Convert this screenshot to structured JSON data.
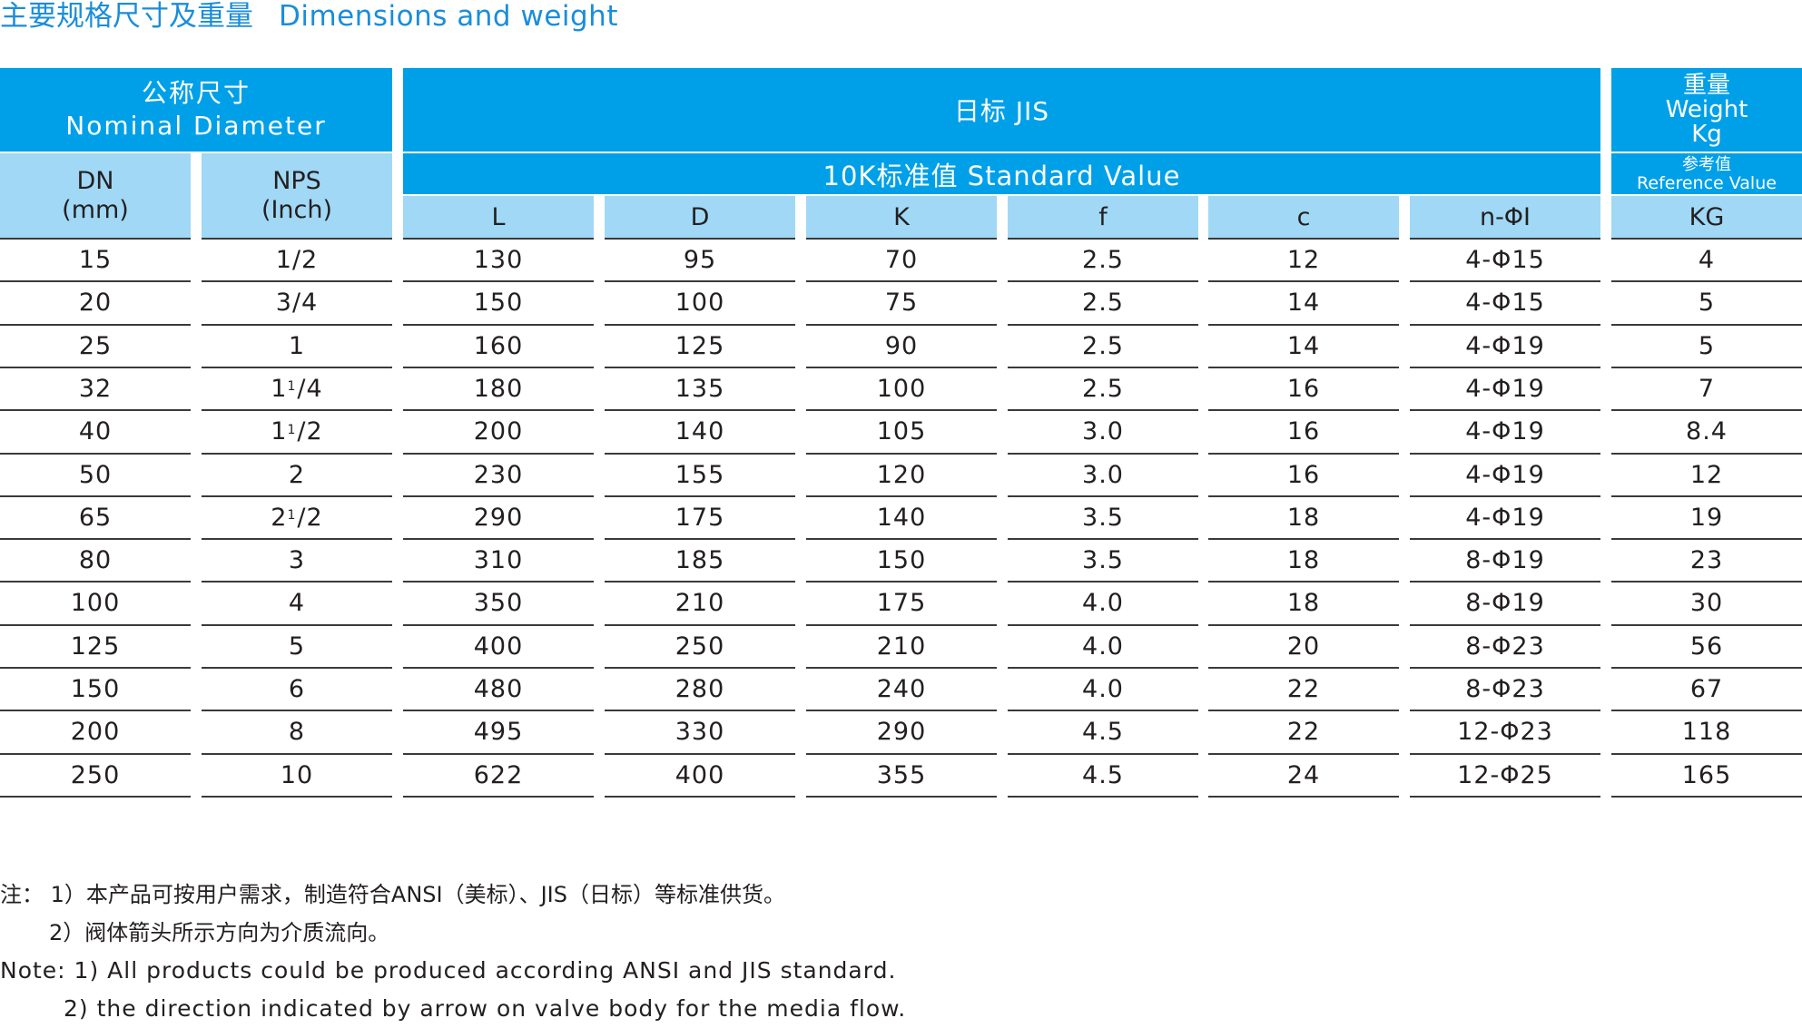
{
  "title": {
    "cn": "主要规格尺寸及重量",
    "en": "Dimensions and weight"
  },
  "header": {
    "nominal_cn": "公称尺寸",
    "nominal_en": "Nominal Diameter",
    "jis": "日标 JIS",
    "std": "10K标准值 Standard Value",
    "weight_cn": "重量",
    "weight_en": "Weight",
    "weight_unit": "Kg",
    "ref_cn": "参考值",
    "ref_en": "Reference Value",
    "dn": "DN",
    "dn_unit": "(mm)",
    "nps": "NPS",
    "nps_unit": "(Inch)",
    "cols": [
      "L",
      "D",
      "K",
      "f",
      "c",
      "n-ΦI",
      "KG"
    ]
  },
  "rows": [
    [
      "15",
      "1/2",
      "130",
      "95",
      "70",
      "2.5",
      "12",
      "4-Φ15",
      "4"
    ],
    [
      "20",
      "3/4",
      "150",
      "100",
      "75",
      "2.5",
      "14",
      "4-Φ15",
      "5"
    ],
    [
      "25",
      "1",
      "160",
      "125",
      "90",
      "2.5",
      "14",
      "4-Φ19",
      "5"
    ],
    [
      "32",
      "1¹/4",
      "180",
      "135",
      "100",
      "2.5",
      "16",
      "4-Φ19",
      "7"
    ],
    [
      "40",
      "1¹/2",
      "200",
      "140",
      "105",
      "3.0",
      "16",
      "4-Φ19",
      "8.4"
    ],
    [
      "50",
      "2",
      "230",
      "155",
      "120",
      "3.0",
      "16",
      "4-Φ19",
      "12"
    ],
    [
      "65",
      "2¹/2",
      "290",
      "175",
      "140",
      "3.5",
      "18",
      "4-Φ19",
      "19"
    ],
    [
      "80",
      "3",
      "310",
      "185",
      "150",
      "3.5",
      "18",
      "8-Φ19",
      "23"
    ],
    [
      "100",
      "4",
      "350",
      "210",
      "175",
      "4.0",
      "18",
      "8-Φ19",
      "30"
    ],
    [
      "125",
      "5",
      "400",
      "250",
      "210",
      "4.0",
      "20",
      "8-Φ23",
      "56"
    ],
    [
      "150",
      "6",
      "480",
      "280",
      "240",
      "4.0",
      "22",
      "8-Φ23",
      "67"
    ],
    [
      "200",
      "8",
      "495",
      "330",
      "290",
      "4.5",
      "22",
      "12-Φ23",
      "118"
    ],
    [
      "250",
      "10",
      "622",
      "400",
      "355",
      "4.5",
      "24",
      "12-Φ25",
      "165"
    ]
  ],
  "notes": {
    "cn1": "注： 1）本产品可按用户需求，制造符合ANSI（美标）、JIS（日标）等标准供货。",
    "cn2": "2）阀体箭头所示方向为介质流向。",
    "en1": "Note: 1) All products could be produced according ANSI and JIS standard.",
    "en2": "2) the direction indicated by arrow on valve body for the media flow."
  }
}
